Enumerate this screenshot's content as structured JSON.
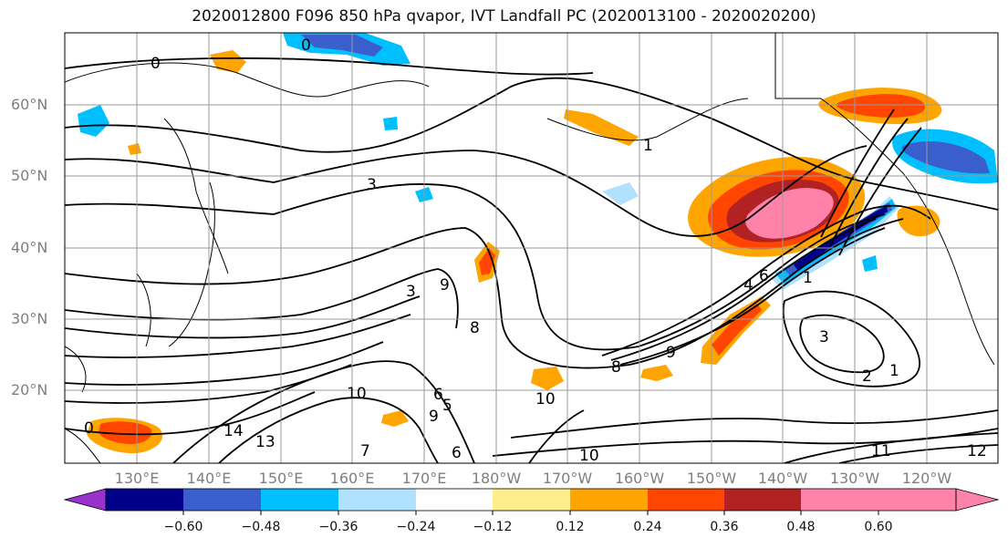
{
  "title": "2020012800 F096 850 hPa qvapor, IVT Landfall PC (2020013100 - 2020020200)",
  "latitude_labels": [
    "60°N",
    "50°N",
    "40°N",
    "30°N",
    "20°N"
  ],
  "longitude_labels": [
    "130°E",
    "140°E",
    "150°E",
    "160°E",
    "170°E",
    "180°W",
    "170°W",
    "160°W",
    "150°W",
    "140°W",
    "130°W",
    "120°W"
  ],
  "colorbar": {
    "colors": [
      "#9932cc",
      "#00008b",
      "#3a5fcd",
      "#00bfff",
      "#b0e2ff",
      "#ffffff",
      "#ffec8b",
      "#ffa500",
      "#ff4500",
      "#b22222",
      "#ff82ab"
    ],
    "tick_labels": [
      "−0.60",
      "−0.48",
      "−0.36",
      "−0.24",
      "−0.12",
      "0.12",
      "0.24",
      "0.36",
      "0.48",
      "0.60"
    ]
  },
  "contour_labels": [
    "0",
    "0",
    "1",
    "3",
    "3",
    "4",
    "5",
    "6",
    "6",
    "8",
    "8",
    "9",
    "9",
    "10",
    "10",
    "10",
    "11",
    "12",
    "13",
    "14",
    "2",
    "1",
    "3",
    "1",
    "0",
    "7",
    "9",
    "6"
  ]
}
